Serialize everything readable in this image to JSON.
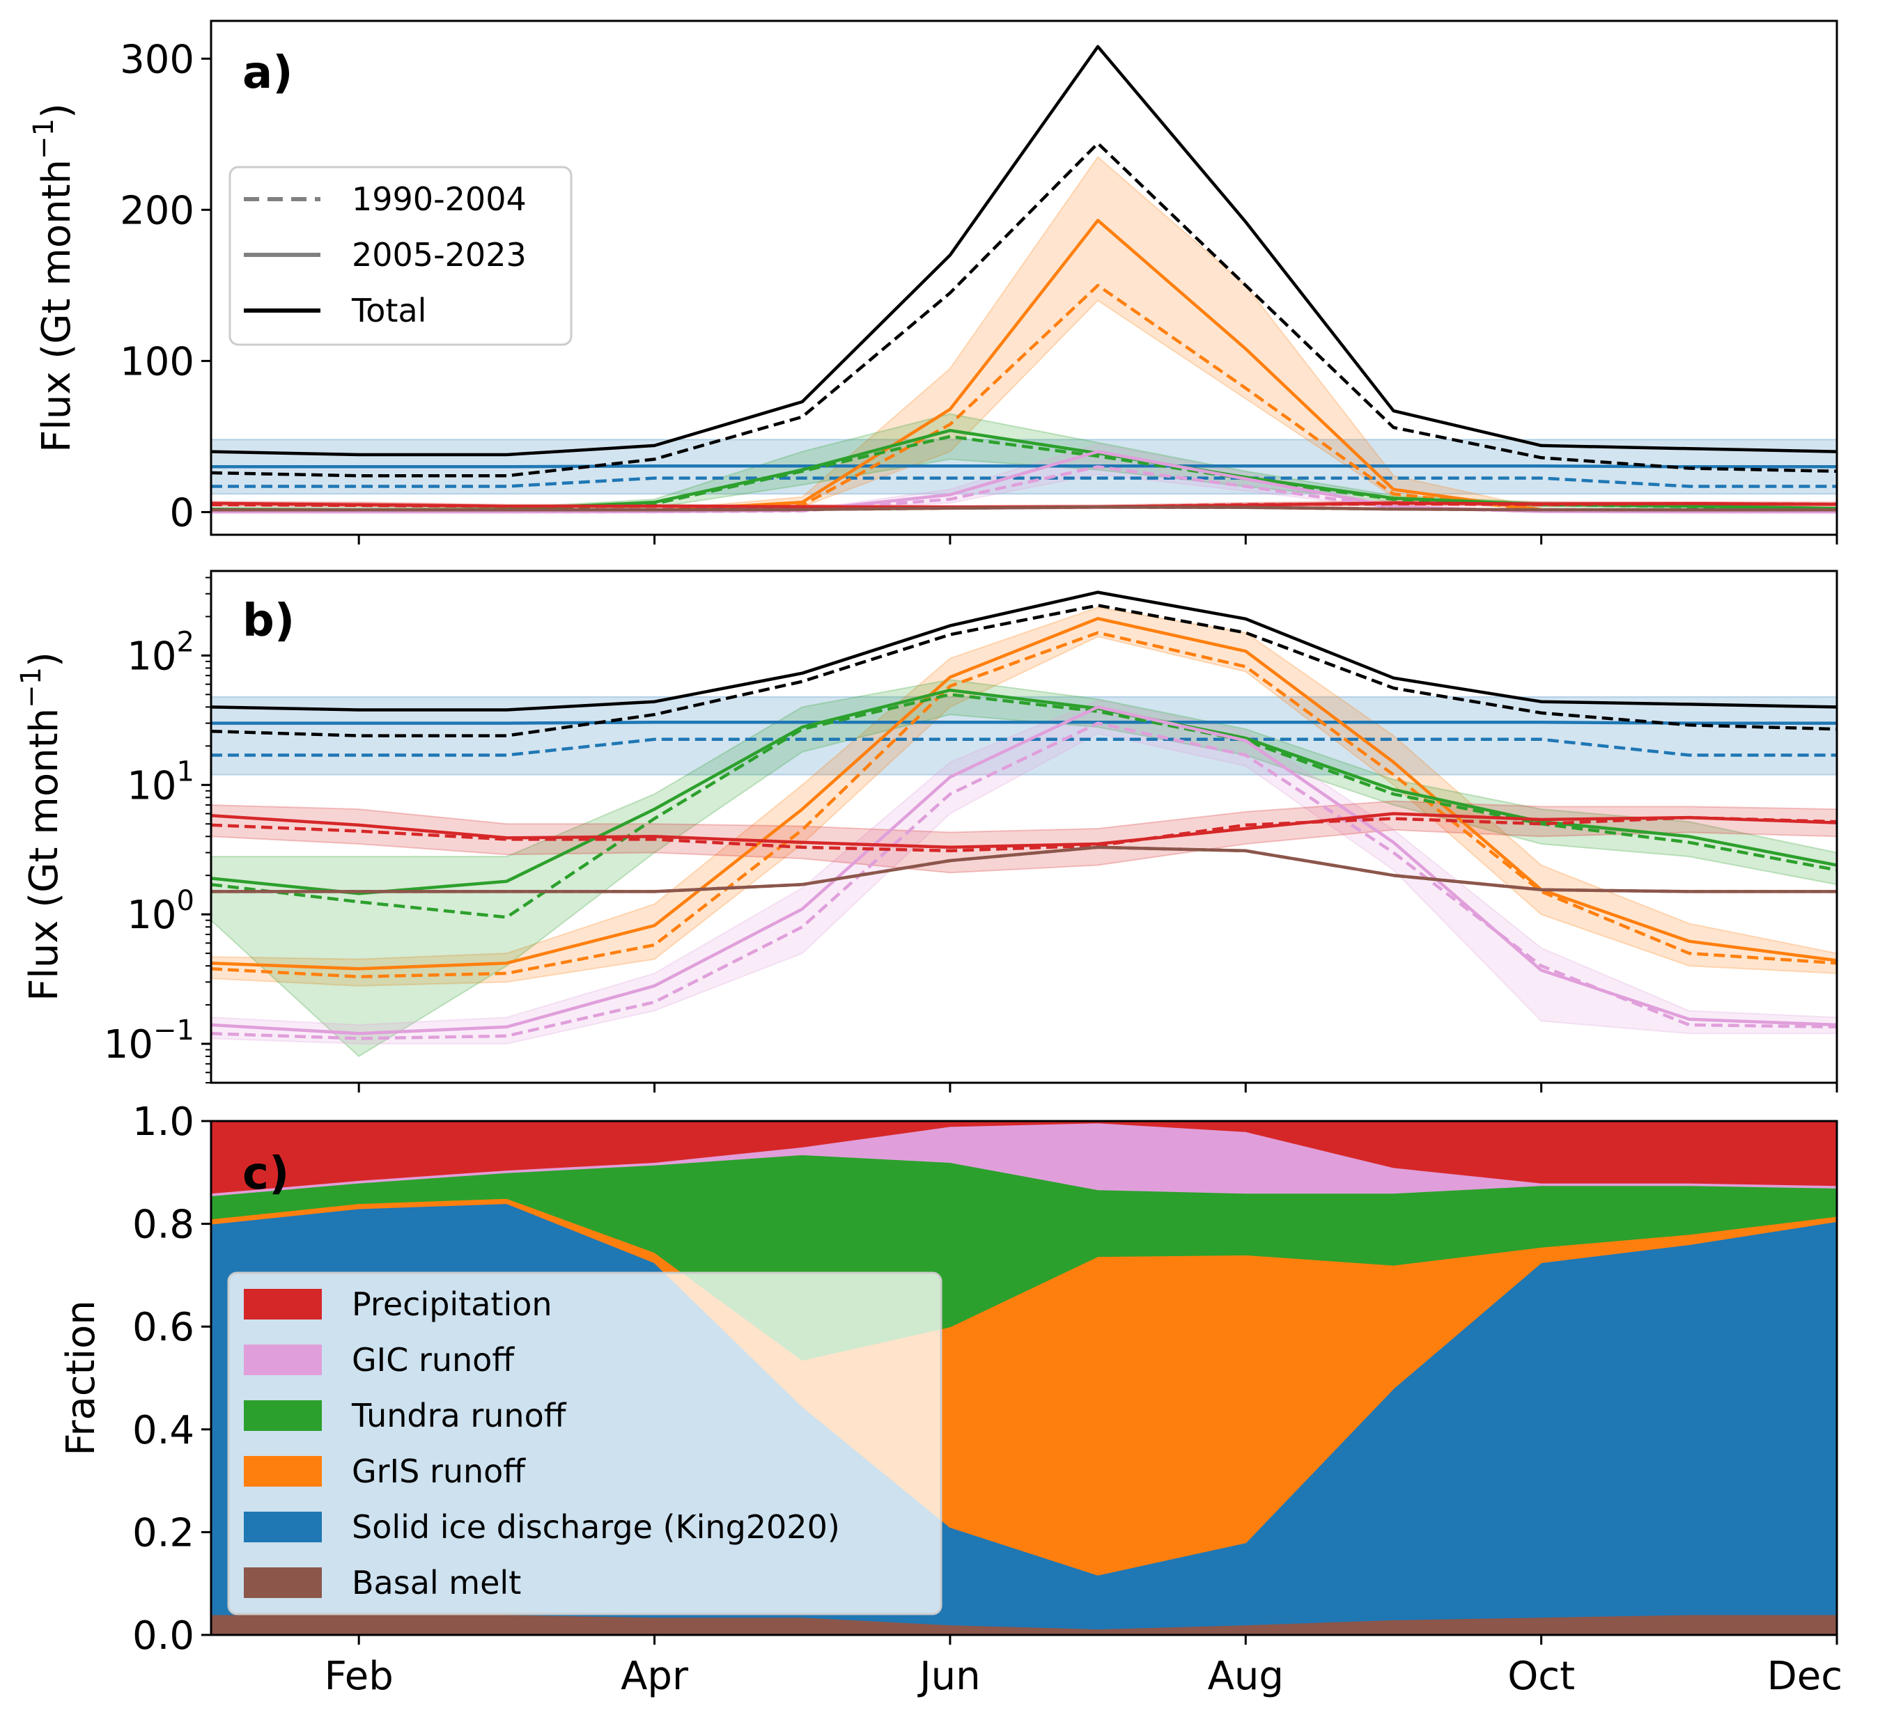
{
  "chart_data": [
    {
      "panel": "a)",
      "type": "line",
      "ylabel": "Flux (Gt month",
      "ylabel_sup": "−1",
      "ylabel_end": ")",
      "yscale": "linear",
      "ylim": [
        -15,
        325
      ],
      "yticks": [
        0,
        100,
        200,
        300
      ],
      "ytick_labels": [
        "0",
        "100",
        "200",
        "300"
      ],
      "legend": {
        "placement": "upper-left",
        "entries": [
          {
            "label": "1990-2004",
            "style": "dashed",
            "color": "#808080"
          },
          {
            "label": "2005-2023",
            "style": "solid",
            "color": "#808080"
          },
          {
            "label": "Total",
            "style": "solid",
            "color": "#000000"
          }
        ]
      }
    },
    {
      "panel": "b)",
      "type": "line",
      "ylabel": "Flux (Gt month",
      "ylabel_sup": "−1",
      "ylabel_end": ")",
      "yscale": "log",
      "ylim": [
        0.05,
        450
      ],
      "yticks": [
        0.1,
        1,
        10,
        100
      ],
      "ytick_labels": [
        {
          "base": "10",
          "exp": "−1"
        },
        {
          "base": "10",
          "exp": "0"
        },
        {
          "base": "10",
          "exp": "1"
        },
        {
          "base": "10",
          "exp": "2"
        }
      ]
    },
    {
      "panel": "c)",
      "type": "area",
      "ylabel": "Fraction",
      "ylim": [
        0,
        1
      ],
      "yticks": [
        0,
        0.2,
        0.4,
        0.6,
        0.8,
        1.0
      ],
      "ytick_labels": [
        "0.0",
        "0.2",
        "0.4",
        "0.6",
        "0.8",
        "1.0"
      ],
      "legend": {
        "placement": "lower-left",
        "entries": [
          {
            "label": "Precipitation",
            "color": "#d62728"
          },
          {
            "label": "GIC runoff",
            "color": "#e09fdb"
          },
          {
            "label": "Tundra runoff",
            "color": "#2ca02c"
          },
          {
            "label": "GrIS runoff",
            "color": "#ff7f0e"
          },
          {
            "label": "Solid ice discharge (King2020)",
            "color": "#1f77b4"
          },
          {
            "label": "Basal melt",
            "color": "#8c564b"
          }
        ]
      },
      "stack_order_bottom_to_top": [
        "Basal melt",
        "Solid ice discharge (King2020)",
        "GrIS runoff",
        "Tundra runoff",
        "GIC runoff",
        "Precipitation"
      ],
      "fractions": {
        "Basal melt": [
          0.04,
          0.04,
          0.04,
          0.035,
          0.035,
          0.02,
          0.012,
          0.02,
          0.03,
          0.035,
          0.04,
          0.04
        ],
        "Solid ice discharge (King2020)": [
          0.76,
          0.79,
          0.8,
          0.69,
          0.41,
          0.19,
          0.105,
          0.16,
          0.45,
          0.69,
          0.72,
          0.765
        ],
        "GrIS runoff": [
          0.01,
          0.01,
          0.01,
          0.02,
          0.09,
          0.39,
          0.62,
          0.56,
          0.24,
          0.03,
          0.02,
          0.01
        ],
        "Tundra runoff": [
          0.045,
          0.04,
          0.05,
          0.17,
          0.4,
          0.32,
          0.13,
          0.12,
          0.14,
          0.12,
          0.095,
          0.055
        ],
        "GIC runoff": [
          0.005,
          0.005,
          0.005,
          0.005,
          0.015,
          0.07,
          0.13,
          0.12,
          0.05,
          0.005,
          0.005,
          0.005
        ],
        "Precipitation": [
          0.14,
          0.115,
          0.095,
          0.08,
          0.05,
          0.01,
          0.003,
          0.02,
          0.09,
          0.12,
          0.12,
          0.125
        ]
      }
    }
  ],
  "x": {
    "months": [
      1,
      2,
      3,
      4,
      5,
      6,
      7,
      8,
      9,
      10,
      11,
      12
    ],
    "xlim": [
      1,
      12
    ],
    "ticks": [
      2,
      4,
      6,
      8,
      10,
      12
    ],
    "tick_labels": [
      "Feb",
      "Apr",
      "Jun",
      "Aug",
      "Oct",
      "Dec"
    ]
  },
  "series": [
    {
      "name": "Total",
      "color": "#000000",
      "early": [
        26,
        24,
        24,
        35,
        63,
        145,
        244,
        150,
        56,
        36,
        29,
        27
      ],
      "late": [
        40,
        38,
        38,
        44,
        73,
        170,
        308,
        192,
        67,
        44,
        42,
        40
      ]
    },
    {
      "name": "Solid ice discharge (King2020)",
      "color": "#1f77b4",
      "early": [
        17,
        17,
        17,
        22.5,
        22.5,
        22.5,
        22.5,
        22.5,
        22.5,
        22.5,
        17,
        17
      ],
      "late": [
        30,
        30,
        30,
        30.5,
        30.5,
        30.5,
        30.5,
        30.5,
        30.5,
        30.5,
        30,
        30
      ],
      "band": [
        [
          12,
          48
        ],
        [
          12,
          48
        ],
        [
          12,
          48
        ],
        [
          12,
          48
        ],
        [
          12,
          48
        ],
        [
          12,
          48
        ],
        [
          12,
          48
        ],
        [
          12,
          48
        ],
        [
          12,
          48
        ],
        [
          12,
          48
        ],
        [
          12,
          48
        ],
        [
          12,
          48
        ]
      ]
    },
    {
      "name": "GrIS runoff",
      "color": "#ff7f0e",
      "early": [
        0.38,
        0.33,
        0.35,
        0.58,
        4.5,
        58,
        150,
        82,
        12,
        1.5,
        0.5,
        0.42
      ],
      "late": [
        0.42,
        0.38,
        0.42,
        0.82,
        6.5,
        68,
        193,
        108,
        15,
        1.55,
        0.62,
        0.44
      ],
      "band": [
        [
          0.32,
          0.47
        ],
        [
          0.28,
          0.45
        ],
        [
          0.3,
          0.5
        ],
        [
          0.45,
          1.2
        ],
        [
          3.5,
          10
        ],
        [
          40,
          95
        ],
        [
          140,
          235
        ],
        [
          75,
          150
        ],
        [
          10,
          24
        ],
        [
          1.0,
          2.4
        ],
        [
          0.4,
          0.85
        ],
        [
          0.35,
          0.5
        ]
      ]
    },
    {
      "name": "Tundra runoff",
      "color": "#2ca02c",
      "early": [
        1.7,
        1.25,
        0.95,
        5.5,
        27,
        50,
        37,
        22,
        8.5,
        5,
        3.6,
        2.2
      ],
      "late": [
        1.9,
        1.45,
        1.8,
        6.5,
        28,
        54,
        39,
        23,
        9.2,
        5.2,
        4.0,
        2.4
      ],
      "band": [
        [
          0.9,
          2.8
        ],
        [
          0.08,
          2.8
        ],
        [
          0.4,
          2.8
        ],
        [
          3.0,
          8.5
        ],
        [
          18,
          40
        ],
        [
          35,
          65
        ],
        [
          28,
          46
        ],
        [
          17,
          27
        ],
        [
          7,
          11
        ],
        [
          3.5,
          6.5
        ],
        [
          2.8,
          5.2
        ],
        [
          1.7,
          3.0
        ]
      ]
    },
    {
      "name": "GIC runoff",
      "color": "#e09fdb",
      "early": [
        0.12,
        0.11,
        0.115,
        0.21,
        0.8,
        8.5,
        30,
        17,
        3,
        0.4,
        0.14,
        0.135
      ],
      "late": [
        0.14,
        0.12,
        0.135,
        0.28,
        1.1,
        11.5,
        40,
        22,
        3.6,
        0.37,
        0.155,
        0.14
      ],
      "band": [
        [
          0.11,
          0.16
        ],
        [
          0.1,
          0.14
        ],
        [
          0.1,
          0.16
        ],
        [
          0.18,
          0.35
        ],
        [
          0.5,
          1.6
        ],
        [
          6,
          15
        ],
        [
          25,
          45
        ],
        [
          14,
          26
        ],
        [
          2.2,
          4.5
        ],
        [
          0.15,
          0.55
        ],
        [
          0.12,
          0.18
        ],
        [
          0.12,
          0.16
        ]
      ]
    },
    {
      "name": "Precipitation",
      "color": "#d62728",
      "early": [
        4.9,
        4.4,
        3.8,
        3.8,
        3.3,
        3.1,
        3.4,
        4.9,
        5.5,
        5.0,
        5.6,
        5.2
      ],
      "late": [
        5.8,
        4.9,
        3.9,
        4.0,
        3.6,
        3.3,
        3.5,
        4.6,
        6.0,
        5.4,
        5.6,
        5.1
      ],
      "band": [
        [
          4.0,
          7.0
        ],
        [
          3.5,
          6.5
        ],
        [
          2.9,
          5.0
        ],
        [
          3.0,
          5.0
        ],
        [
          2.7,
          4.8
        ],
        [
          2.1,
          4.3
        ],
        [
          2.4,
          4.6
        ],
        [
          3.5,
          6.2
        ],
        [
          4.5,
          7.5
        ],
        [
          4.0,
          6.8
        ],
        [
          4.3,
          6.8
        ],
        [
          4.0,
          6.5
        ]
      ]
    },
    {
      "name": "Basal melt",
      "color": "#8c564b",
      "early": [
        1.5,
        1.5,
        1.5,
        1.5,
        1.7,
        2.6,
        3.3,
        3.1,
        2.0,
        1.55,
        1.5,
        1.5
      ],
      "late": [
        1.5,
        1.5,
        1.5,
        1.5,
        1.7,
        2.6,
        3.3,
        3.1,
        2.0,
        1.55,
        1.5,
        1.5
      ]
    }
  ]
}
